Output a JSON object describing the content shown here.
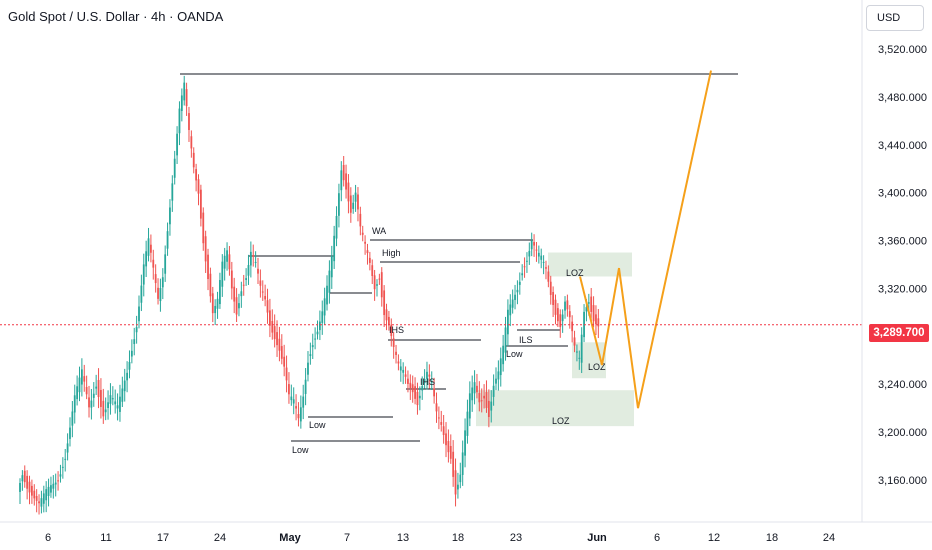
{
  "header": {
    "title": "Gold Spot / U.S. Dollar · 4h · OANDA",
    "currency": "USD"
  },
  "last_price": "3,289.700",
  "colors": {
    "bull": "#26a69a",
    "bear": "#ef5350",
    "projection": "#f5a01a",
    "zone": "#d7e6d6",
    "price_line": "#f23645"
  },
  "chart_data": {
    "type": "candlestick",
    "title": "Gold Spot / U.S. Dollar · 4h · OANDA",
    "ylim": [
      3140,
      3545
    ],
    "y_ticks": [
      3160,
      3200,
      3240,
      3280,
      3320,
      3360,
      3400,
      3440,
      3480,
      3520
    ],
    "y_tick_labels": [
      "3,160.000",
      "3,200.000",
      "3,240.000",
      "3,280.000",
      "3,320.000",
      "3,360.000",
      "3,400.000",
      "3,440.000",
      "3,480.000",
      "3,520.000"
    ],
    "x_labels": [
      "6",
      "11",
      "17",
      "24",
      "May",
      "7",
      "13",
      "18",
      "23",
      "Jun",
      "6",
      "12",
      "18",
      "24"
    ],
    "current_price": 3289.7,
    "price_path": [
      [
        0,
        3150
      ],
      [
        2,
        3165
      ],
      [
        4,
        3155
      ],
      [
        9,
        3140
      ],
      [
        12,
        3150
      ],
      [
        17,
        3160
      ],
      [
        20,
        3180
      ],
      [
        24,
        3230
      ],
      [
        27,
        3250
      ],
      [
        30,
        3220
      ],
      [
        33,
        3240
      ],
      [
        36,
        3215
      ],
      [
        39,
        3230
      ],
      [
        42,
        3220
      ],
      [
        46,
        3250
      ],
      [
        50,
        3290
      ],
      [
        53,
        3340
      ],
      [
        55,
        3360
      ],
      [
        57,
        3335
      ],
      [
        59,
        3310
      ],
      [
        61,
        3330
      ],
      [
        64,
        3390
      ],
      [
        66,
        3430
      ],
      [
        68,
        3470
      ],
      [
        70,
        3490
      ],
      [
        72,
        3450
      ],
      [
        74,
        3420
      ],
      [
        76,
        3400
      ],
      [
        78,
        3360
      ],
      [
        80,
        3330
      ],
      [
        82,
        3300
      ],
      [
        84,
        3310
      ],
      [
        86,
        3340
      ],
      [
        88,
        3350
      ],
      [
        90,
        3320
      ],
      [
        92,
        3300
      ],
      [
        94,
        3320
      ],
      [
        96,
        3330
      ],
      [
        98,
        3350
      ],
      [
        100,
        3340
      ],
      [
        102,
        3320
      ],
      [
        104,
        3310
      ],
      [
        106,
        3290
      ],
      [
        108,
        3280
      ],
      [
        110,
        3270
      ],
      [
        112,
        3255
      ],
      [
        114,
        3230
      ],
      [
        116,
        3225
      ],
      [
        118,
        3210
      ],
      [
        120,
        3230
      ],
      [
        122,
        3260
      ],
      [
        124,
        3275
      ],
      [
        126,
        3285
      ],
      [
        128,
        3300
      ],
      [
        130,
        3320
      ],
      [
        132,
        3345
      ],
      [
        134,
        3380
      ],
      [
        136,
        3420
      ],
      [
        138,
        3405
      ],
      [
        140,
        3385
      ],
      [
        142,
        3400
      ],
      [
        144,
        3370
      ],
      [
        146,
        3355
      ],
      [
        148,
        3340
      ],
      [
        150,
        3320
      ],
      [
        152,
        3330
      ],
      [
        154,
        3300
      ],
      [
        156,
        3290
      ],
      [
        158,
        3270
      ],
      [
        160,
        3255
      ],
      [
        162,
        3250
      ],
      [
        164,
        3240
      ],
      [
        166,
        3235
      ],
      [
        168,
        3225
      ],
      [
        170,
        3240
      ],
      [
        172,
        3250
      ],
      [
        174,
        3240
      ],
      [
        176,
        3215
      ],
      [
        178,
        3205
      ],
      [
        180,
        3190
      ],
      [
        182,
        3180
      ],
      [
        184,
        3150
      ],
      [
        186,
        3165
      ],
      [
        188,
        3200
      ],
      [
        190,
        3230
      ],
      [
        192,
        3240
      ],
      [
        194,
        3225
      ],
      [
        196,
        3230
      ],
      [
        198,
        3215
      ],
      [
        200,
        3240
      ],
      [
        202,
        3250
      ],
      [
        204,
        3270
      ],
      [
        206,
        3300
      ],
      [
        208,
        3310
      ],
      [
        210,
        3320
      ],
      [
        212,
        3335
      ],
      [
        214,
        3345
      ],
      [
        216,
        3360
      ],
      [
        218,
        3350
      ],
      [
        220,
        3345
      ],
      [
        222,
        3335
      ],
      [
        224,
        3315
      ],
      [
        226,
        3300
      ],
      [
        228,
        3290
      ],
      [
        230,
        3310
      ],
      [
        232,
        3295
      ],
      [
        234,
        3270
      ],
      [
        236,
        3260
      ],
      [
        238,
        3300
      ],
      [
        240,
        3310
      ],
      [
        242,
        3295
      ],
      [
        244,
        3290
      ]
    ],
    "levels": [
      {
        "name": "top-resistance",
        "y": 3500,
        "x": [
          3,
          164
        ]
      },
      {
        "name": "wa-line",
        "y": 3365,
        "x": [
          42,
          53
        ]
      },
      {
        "name": "high-line",
        "y": 3347,
        "x": [
          45,
          68
        ]
      },
      {
        "name": "left-high-line",
        "y": 3352,
        "x": [
          14,
          48
        ]
      },
      {
        "name": "mid-level-line",
        "y": 3322,
        "x": [
          30,
          40
        ]
      },
      {
        "name": "ihs-line-upper",
        "y": 3282,
        "x": [
          38,
          56
        ]
      },
      {
        "name": "ils-line",
        "y": 3292,
        "x": [
          53,
          68
        ]
      },
      {
        "name": "ils-lower-line",
        "y": 3277,
        "x": [
          50,
          58
        ]
      },
      {
        "name": "ihs-line-lower",
        "y": 3245,
        "x": [
          41,
          50
        ]
      },
      {
        "name": "low-line-1",
        "y": 3220,
        "x": [
          25,
          40
        ]
      },
      {
        "name": "low-line-2",
        "y": 3200,
        "x": [
          20,
          40
        ]
      }
    ],
    "labels": [
      "WA",
      "High",
      "IHS",
      "IHS",
      "ILS",
      "Low",
      "Low",
      "Low",
      "LOZ",
      "LOZ",
      "LOZ"
    ],
    "zones": [
      {
        "label": "LOZ",
        "y": [
          3330,
          3350
        ]
      },
      {
        "label": "LOZ",
        "y": [
          3245,
          3275
        ]
      },
      {
        "label": "LOZ",
        "y": [
          3205,
          3235
        ]
      }
    ],
    "projection": [
      [
        3330,
        "start"
      ],
      [
        3256,
        "a"
      ],
      [
        3337,
        "b"
      ],
      [
        3220,
        "c"
      ],
      [
        3502,
        "target"
      ]
    ]
  }
}
